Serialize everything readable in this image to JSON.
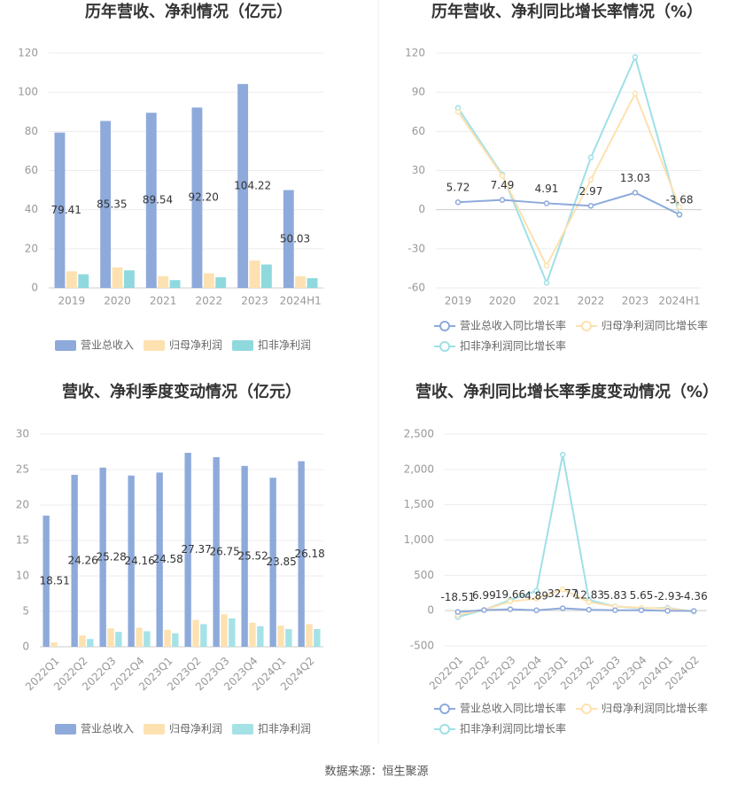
{
  "chart_data": [
    {
      "type": "bar",
      "title": "历年营收、净利情况（亿元）",
      "categories": [
        "2019",
        "2020",
        "2021",
        "2022",
        "2023",
        "2024H1"
      ],
      "series": [
        {
          "name": "营业总收入",
          "color": "#8eaadb",
          "values": [
            79.41,
            85.35,
            89.54,
            92.2,
            104.22,
            50.03
          ],
          "value_labels": [
            "79.41",
            "85.35",
            "89.54",
            "92.20",
            "104.22",
            "50.03"
          ],
          "data_labels": true
        },
        {
          "name": "归母净利润",
          "color": "#fde1b0",
          "values": [
            8.5,
            10.5,
            6,
            7.5,
            14,
            6
          ]
        },
        {
          "name": "扣非净利润",
          "color": "#8fd9de",
          "values": [
            7,
            9,
            4,
            5.5,
            12,
            5
          ]
        }
      ],
      "ylim": [
        0,
        120
      ],
      "yticks": [
        0,
        20,
        40,
        60,
        80,
        100,
        120
      ],
      "grid": true,
      "legend": "bottom"
    },
    {
      "type": "line",
      "title": "历年营收、净利同比增长率情况（%）",
      "categories": [
        "2019",
        "2020",
        "2021",
        "2022",
        "2023",
        "2024H1"
      ],
      "series": [
        {
          "name": "营业总收入同比增长率",
          "color": "#8eaadb",
          "values": [
            5.72,
            7.49,
            4.91,
            2.97,
            13.03,
            -3.68
          ],
          "data_labels": true
        },
        {
          "name": "归母净利润同比增长率",
          "color": "#fde1b0",
          "values": [
            75,
            26,
            -43,
            23,
            89,
            2
          ]
        },
        {
          "name": "扣非净利润同比增长率",
          "color": "#9fe0e6",
          "values": [
            78,
            27,
            -56,
            40,
            117,
            -4
          ]
        }
      ],
      "ylim": [
        -60,
        120
      ],
      "yticks": [
        -60,
        -30,
        0,
        30,
        60,
        90,
        120
      ],
      "grid": true,
      "legend": "bottom"
    },
    {
      "type": "bar",
      "title": "营收、净利季度变动情况（亿元）",
      "categories": [
        "2022Q1",
        "2022Q2",
        "2022Q3",
        "2022Q4",
        "2023Q1",
        "2023Q2",
        "2023Q3",
        "2023Q4",
        "2024Q1",
        "2024Q2"
      ],
      "series": [
        {
          "name": "营业总收入",
          "color": "#8eaadb",
          "values": [
            18.51,
            24.26,
            25.28,
            24.16,
            24.58,
            27.37,
            26.75,
            25.52,
            23.85,
            26.18
          ],
          "data_labels": true
        },
        {
          "name": "归母净利润",
          "color": "#fde1b0",
          "values": [
            0.6,
            1.6,
            2.6,
            2.7,
            2.4,
            3.8,
            4.6,
            3.4,
            3.0,
            3.2
          ]
        },
        {
          "name": "扣非净利润",
          "color": "#a5e2e6",
          "values": [
            0,
            1.1,
            2.1,
            2.2,
            1.9,
            3.2,
            4.0,
            2.9,
            2.5,
            2.5
          ]
        }
      ],
      "ylim": [
        0,
        30
      ],
      "yticks": [
        0,
        5,
        10,
        15,
        20,
        25,
        30
      ],
      "grid": true,
      "legend": "bottom"
    },
    {
      "type": "line",
      "title": "营收、净利同比增长率季度变动情况（%）",
      "categories": [
        "2022Q1",
        "2022Q2",
        "2022Q3",
        "2022Q4",
        "2023Q1",
        "2023Q2",
        "2023Q3",
        "2023Q4",
        "2024Q1",
        "2024Q2"
      ],
      "series": [
        {
          "name": "营业总收入同比增长率",
          "color": "#8eaadb",
          "values": [
            -18.51,
            6.99,
            19.66,
            4.89,
            32.77,
            12.83,
            5.83,
            5.65,
            -2.93,
            -4.36
          ],
          "data_labels": true
        },
        {
          "name": "归母净利润同比增长率",
          "color": "#fde1b0",
          "values": [
            -60,
            10,
            130,
            170,
            300,
            120,
            60,
            40,
            30,
            -10
          ]
        },
        {
          "name": "扣非净利润同比增长率",
          "color": "#9fe0e6",
          "values": [
            -90,
            10,
            150,
            280,
            2210,
            150,
            60,
            30,
            40,
            -15
          ]
        }
      ],
      "ylim": [
        -500,
        2500
      ],
      "yticks": [
        -500,
        0,
        500,
        {
          "value": 1000,
          "label": "1,000"
        },
        {
          "value": 1500,
          "label": "1,500"
        },
        {
          "value": 2000,
          "label": "2,000"
        },
        {
          "value": 2500,
          "label": "2,500"
        }
      ],
      "grid": true,
      "legend": "bottom"
    }
  ],
  "source": "数据来源：恒生聚源"
}
